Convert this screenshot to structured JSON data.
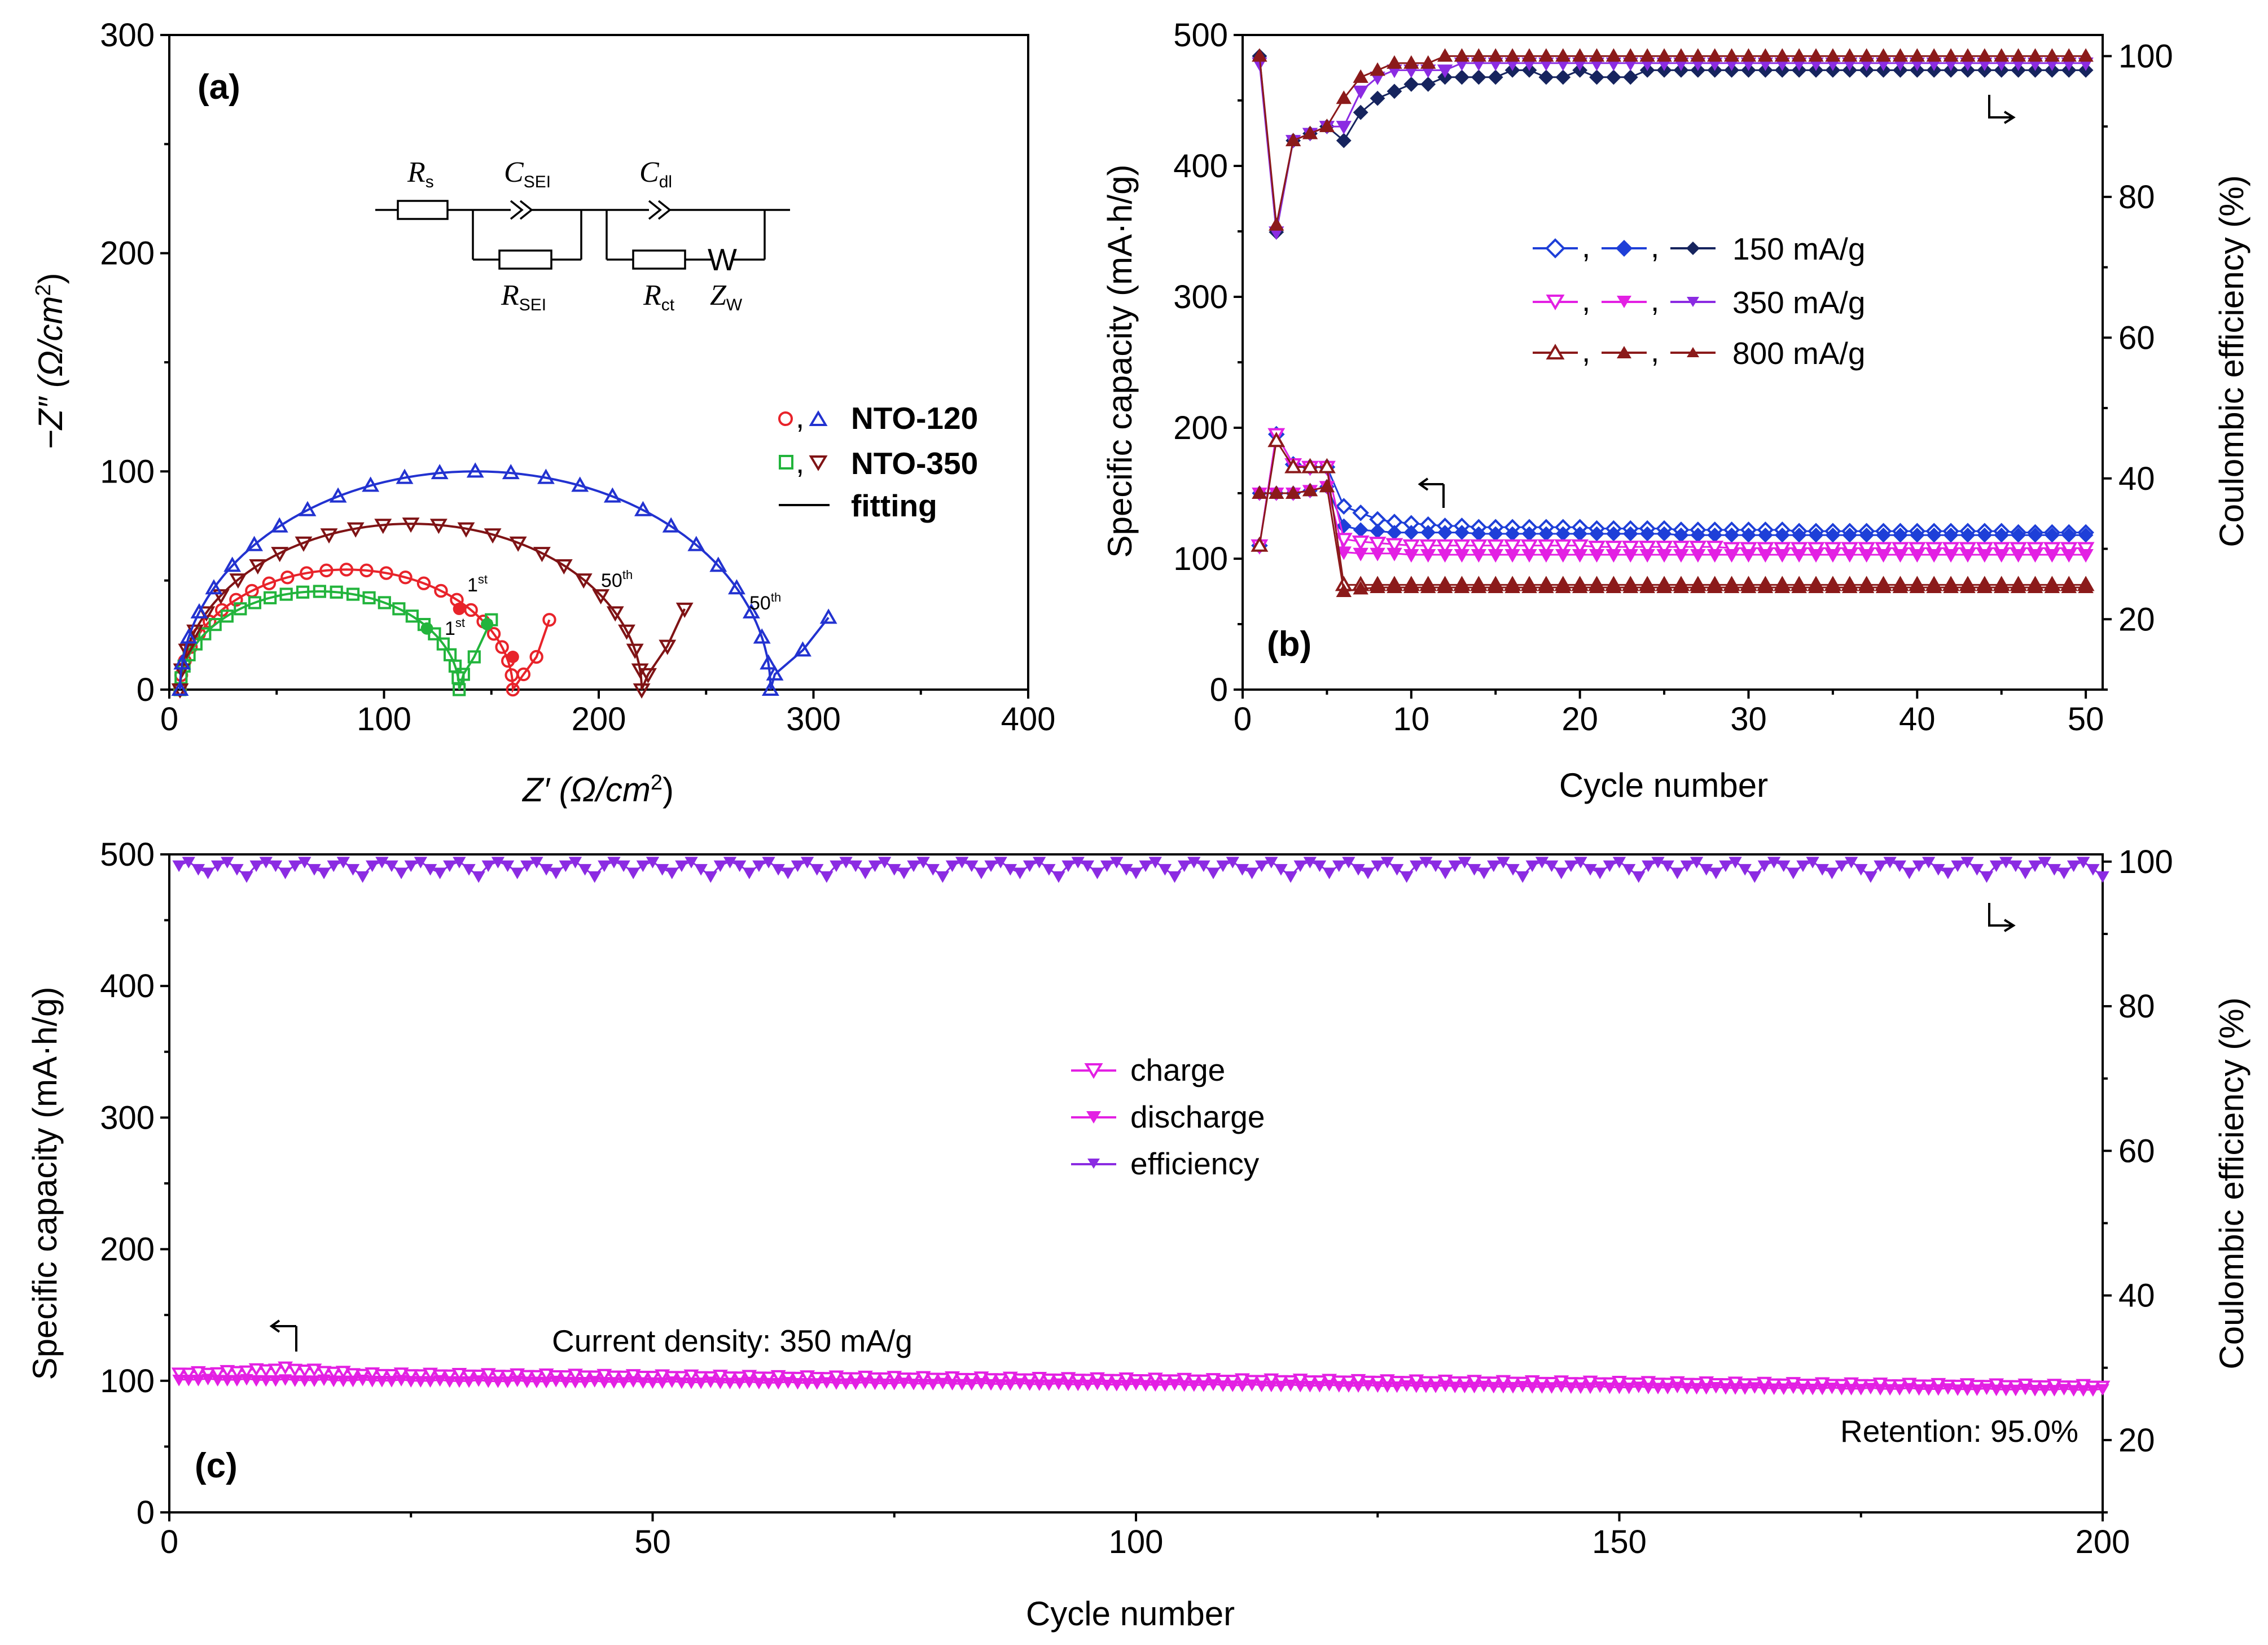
{
  "chart_data": [
    {
      "panel": "a",
      "type": "scatter",
      "panel_label": "(a)",
      "xlabel_main": "Z′ (Ω/cm",
      "xlabel_sup": "2",
      "ylabel_main": "−Z″ (Ω/cm",
      "ylabel_sup": "2",
      "xlim": [
        0,
        400
      ],
      "ylim": [
        0,
        300
      ],
      "xticks": [
        0,
        100,
        200,
        300,
        400
      ],
      "yticks": [
        0,
        100,
        200,
        300
      ],
      "circuit": {
        "Rs": "R",
        "Rs_sub": "s",
        "Csei": "C",
        "Csei_sub": "SEI",
        "Cdl": "C",
        "Cdl_sub": "dl",
        "Rsei": "R",
        "Rsei_sub": "SEI",
        "Rct": "R",
        "Rct_sub": "ct",
        "Zw": "Z",
        "Zw_sub": "W",
        "w_symbol": "W"
      },
      "legend": [
        {
          "markers": "○, △",
          "label": "NTO-120"
        },
        {
          "markers": "□, ▽",
          "label": "NTO-350"
        },
        {
          "markers": "—",
          "label": "fitting"
        }
      ],
      "annotations": [
        {
          "base": "1",
          "sup": "st",
          "near": "NTO-120 1st cycle"
        },
        {
          "base": "1",
          "sup": "st",
          "near": "NTO-350 1st cycle"
        },
        {
          "base": "50",
          "sup": "th",
          "near": "NTO-350 50th cycle"
        },
        {
          "base": "50",
          "sup": "th",
          "near": "NTO-120 50th cycle"
        }
      ],
      "series": [
        {
          "name": "NTO-120 1st",
          "marker": "circle",
          "color": "#e8232a",
          "R0": 5,
          "Rarc": 155,
          "h": 55,
          "tail": [
            [
              165,
              7
            ],
            [
              171,
              15
            ],
            [
              177,
              32
            ]
          ]
        },
        {
          "name": "NTO-350 1st",
          "marker": "square",
          "color": "#22b43c",
          "R0": 5,
          "Rarc": 130,
          "h": 45,
          "tail": [
            [
              137,
              7
            ],
            [
              142,
              15
            ],
            [
              150,
              32
            ]
          ]
        },
        {
          "name": "NTO-350 50th",
          "marker": "triangle-down",
          "color": "#7f1315",
          "R0": 5,
          "Rarc": 215,
          "h": 76,
          "tail": [
            [
              223,
              7
            ],
            [
              232,
              20
            ],
            [
              240,
              37
            ]
          ]
        },
        {
          "name": "NTO-120 50th",
          "marker": "triangle-up",
          "color": "#2232d0",
          "R0": 5,
          "Rarc": 275,
          "h": 100,
          "tail": [
            [
              282,
              7
            ],
            [
              295,
              18
            ],
            [
              307,
              33
            ]
          ]
        }
      ]
    },
    {
      "panel": "b",
      "type": "scatter",
      "panel_label": "(b)",
      "xlabel": "Cycle number",
      "ylabel": "Specific capacity (mA·h/g)",
      "y2label": "Coulombic efficiency (%)",
      "xlim": [
        0,
        51
      ],
      "ylim": [
        0,
        500
      ],
      "y2lim": [
        10,
        103
      ],
      "xticks": [
        0,
        10,
        20,
        30,
        40,
        50
      ],
      "yticks": [
        0,
        100,
        200,
        300,
        400,
        500
      ],
      "y2ticks": [
        20,
        40,
        60,
        80,
        100
      ],
      "legend": [
        {
          "markers": ", , ",
          "label": "150 mA/g",
          "color": "#1e3fd8"
        },
        {
          "markers": ", , ",
          "label": "350 mA/g",
          "color": "#e320e3"
        },
        {
          "markers": ", , ",
          "label": "800 mA/g",
          "color": "#8b1a1a"
        }
      ],
      "series": [
        {
          "name": "150 charge",
          "color": "#1e3fd8",
          "marker": "diamond-open",
          "axis": "left",
          "values": [
            110,
            195,
            172,
            170,
            170,
            140,
            135,
            130,
            128,
            127,
            126,
            125,
            125,
            124,
            124,
            124,
            124,
            124,
            124,
            124,
            123,
            123,
            123,
            123,
            123,
            122,
            122,
            122,
            122,
            122,
            122,
            122,
            121,
            121,
            121,
            121,
            121,
            121,
            121,
            121,
            121,
            121,
            121,
            121,
            121,
            120,
            120,
            120,
            120,
            120
          ]
        },
        {
          "name": "150 discharge",
          "color": "#1e3fd8",
          "marker": "diamond",
          "axis": "left",
          "values": [
            150,
            150,
            150,
            152,
            155,
            125,
            122,
            121,
            120,
            120,
            120,
            120,
            120,
            119,
            119,
            119,
            119,
            119,
            119,
            119,
            119,
            119,
            119,
            119,
            119,
            118,
            118,
            118,
            118,
            118,
            118,
            118,
            118,
            118,
            118,
            118,
            118,
            118,
            118,
            118,
            118,
            118,
            118,
            118,
            118,
            118,
            118,
            118,
            118,
            118
          ]
        },
        {
          "name": "150 efficiency",
          "color": "#16245e",
          "marker": "diamond",
          "axis": "right",
          "values": [
            100,
            75,
            88,
            89,
            90,
            88,
            92,
            94,
            95,
            96,
            96,
            97,
            97,
            97,
            97,
            98,
            98,
            97,
            97,
            98,
            97,
            97,
            97,
            98,
            98,
            98,
            98,
            98,
            98,
            98,
            98,
            98,
            98,
            98,
            98,
            98,
            98,
            98,
            98,
            98,
            98,
            98,
            98,
            98,
            98,
            98,
            98,
            98,
            98,
            98
          ]
        },
        {
          "name": "350 charge",
          "color": "#e320e3",
          "marker": "tri-down-open",
          "axis": "left",
          "values": [
            110,
            195,
            172,
            170,
            170,
            115,
            113,
            112,
            111,
            110,
            110,
            110,
            110,
            110,
            110,
            110,
            110,
            110,
            110,
            110,
            109,
            109,
            109,
            109,
            109,
            109,
            109,
            109,
            108,
            108,
            108,
            108,
            108,
            108,
            108,
            108,
            108,
            108,
            108,
            108,
            108,
            108,
            108,
            108,
            108,
            108,
            108,
            108,
            108,
            108
          ]
        },
        {
          "name": "350 discharge",
          "color": "#e320e3",
          "marker": "tri-down",
          "axis": "left",
          "values": [
            150,
            150,
            150,
            152,
            155,
            105,
            104,
            104,
            104,
            103,
            103,
            103,
            103,
            103,
            103,
            103,
            103,
            103,
            103,
            103,
            103,
            103,
            103,
            103,
            103,
            103,
            103,
            103,
            103,
            103,
            103,
            103,
            103,
            103,
            103,
            103,
            103,
            103,
            103,
            103,
            103,
            103,
            103,
            103,
            103,
            103,
            103,
            103,
            103,
            103
          ]
        },
        {
          "name": "350 efficiency",
          "color": "#8b2be2",
          "marker": "tri-down",
          "axis": "right",
          "values": [
            99,
            75,
            88,
            89,
            90,
            90,
            95,
            97,
            98,
            98,
            98,
            98,
            99,
            99,
            99,
            99,
            99,
            99,
            99,
            99,
            99,
            99,
            99,
            99,
            99,
            99,
            99,
            99,
            99,
            99,
            99,
            99,
            99,
            99,
            99,
            99,
            99,
            99,
            99,
            99,
            99,
            99,
            99,
            99,
            99,
            99,
            99,
            99,
            99,
            99
          ]
        },
        {
          "name": "800 charge",
          "color": "#8b1a1a",
          "marker": "tri-up-open",
          "axis": "left",
          "values": [
            110,
            190,
            170,
            170,
            170,
            80,
            80,
            80,
            80,
            80,
            80,
            80,
            80,
            80,
            80,
            80,
            80,
            80,
            80,
            80,
            80,
            80,
            80,
            80,
            80,
            80,
            80,
            80,
            80,
            80,
            80,
            80,
            80,
            80,
            80,
            80,
            80,
            80,
            80,
            80,
            80,
            80,
            80,
            80,
            80,
            80,
            80,
            80,
            80,
            80
          ]
        },
        {
          "name": "800 discharge",
          "color": "#8b1a1a",
          "marker": "tri-up",
          "axis": "left",
          "values": [
            150,
            150,
            150,
            152,
            155,
            75,
            77,
            78,
            78,
            78,
            78,
            78,
            78,
            78,
            78,
            78,
            78,
            78,
            78,
            78,
            78,
            78,
            78,
            78,
            78,
            78,
            78,
            78,
            78,
            78,
            78,
            78,
            78,
            78,
            78,
            78,
            78,
            78,
            78,
            78,
            78,
            78,
            78,
            78,
            78,
            78,
            78,
            78,
            78,
            78
          ]
        },
        {
          "name": "800 efficiency",
          "color": "#8b1a1a",
          "marker": "tri-up",
          "axis": "right",
          "values": [
            100,
            76,
            88,
            89,
            90,
            94,
            97,
            98,
            99,
            99,
            99,
            100,
            100,
            100,
            100,
            100,
            100,
            100,
            100,
            100,
            100,
            100,
            100,
            100,
            100,
            100,
            100,
            100,
            100,
            100,
            100,
            100,
            100,
            100,
            100,
            100,
            100,
            100,
            100,
            100,
            100,
            100,
            100,
            100,
            100,
            100,
            100,
            100,
            100,
            100
          ]
        }
      ]
    },
    {
      "panel": "c",
      "type": "scatter",
      "panel_label": "(c)",
      "xlabel": "Cycle number",
      "ylabel": "Specific capacity (mA·h/g)",
      "y2label": "Coulombic efficiency (%)",
      "xlim": [
        0,
        200
      ],
      "ylim": [
        0,
        500
      ],
      "y2lim": [
        10,
        101
      ],
      "xticks": [
        0,
        50,
        100,
        150,
        200
      ],
      "yticks": [
        0,
        100,
        200,
        300,
        400,
        500
      ],
      "y2ticks": [
        20,
        40,
        60,
        80,
        100
      ],
      "legend": [
        {
          "label": "charge",
          "color": "#e320e3",
          "marker": "tri-down-open"
        },
        {
          "label": "discharge",
          "color": "#e320e3",
          "marker": "tri-down"
        },
        {
          "label": "efficiency",
          "color": "#8b2be2",
          "marker": "tri-down"
        }
      ],
      "current_density": "Current density: 350 mA/g",
      "retention": "Retention: 95.0%",
      "series": [
        {
          "name": "charge",
          "color": "#e320e3",
          "axis": "left",
          "start": 106,
          "end": 96,
          "bump_at": 12,
          "bump": 4
        },
        {
          "name": "discharge",
          "color": "#e320e3",
          "axis": "left",
          "start": 101,
          "end": 93
        },
        {
          "name": "efficiency",
          "color": "#8b2be2",
          "axis": "right",
          "start": 98.5,
          "end": 99,
          "min": 98,
          "max": 100
        }
      ]
    }
  ]
}
